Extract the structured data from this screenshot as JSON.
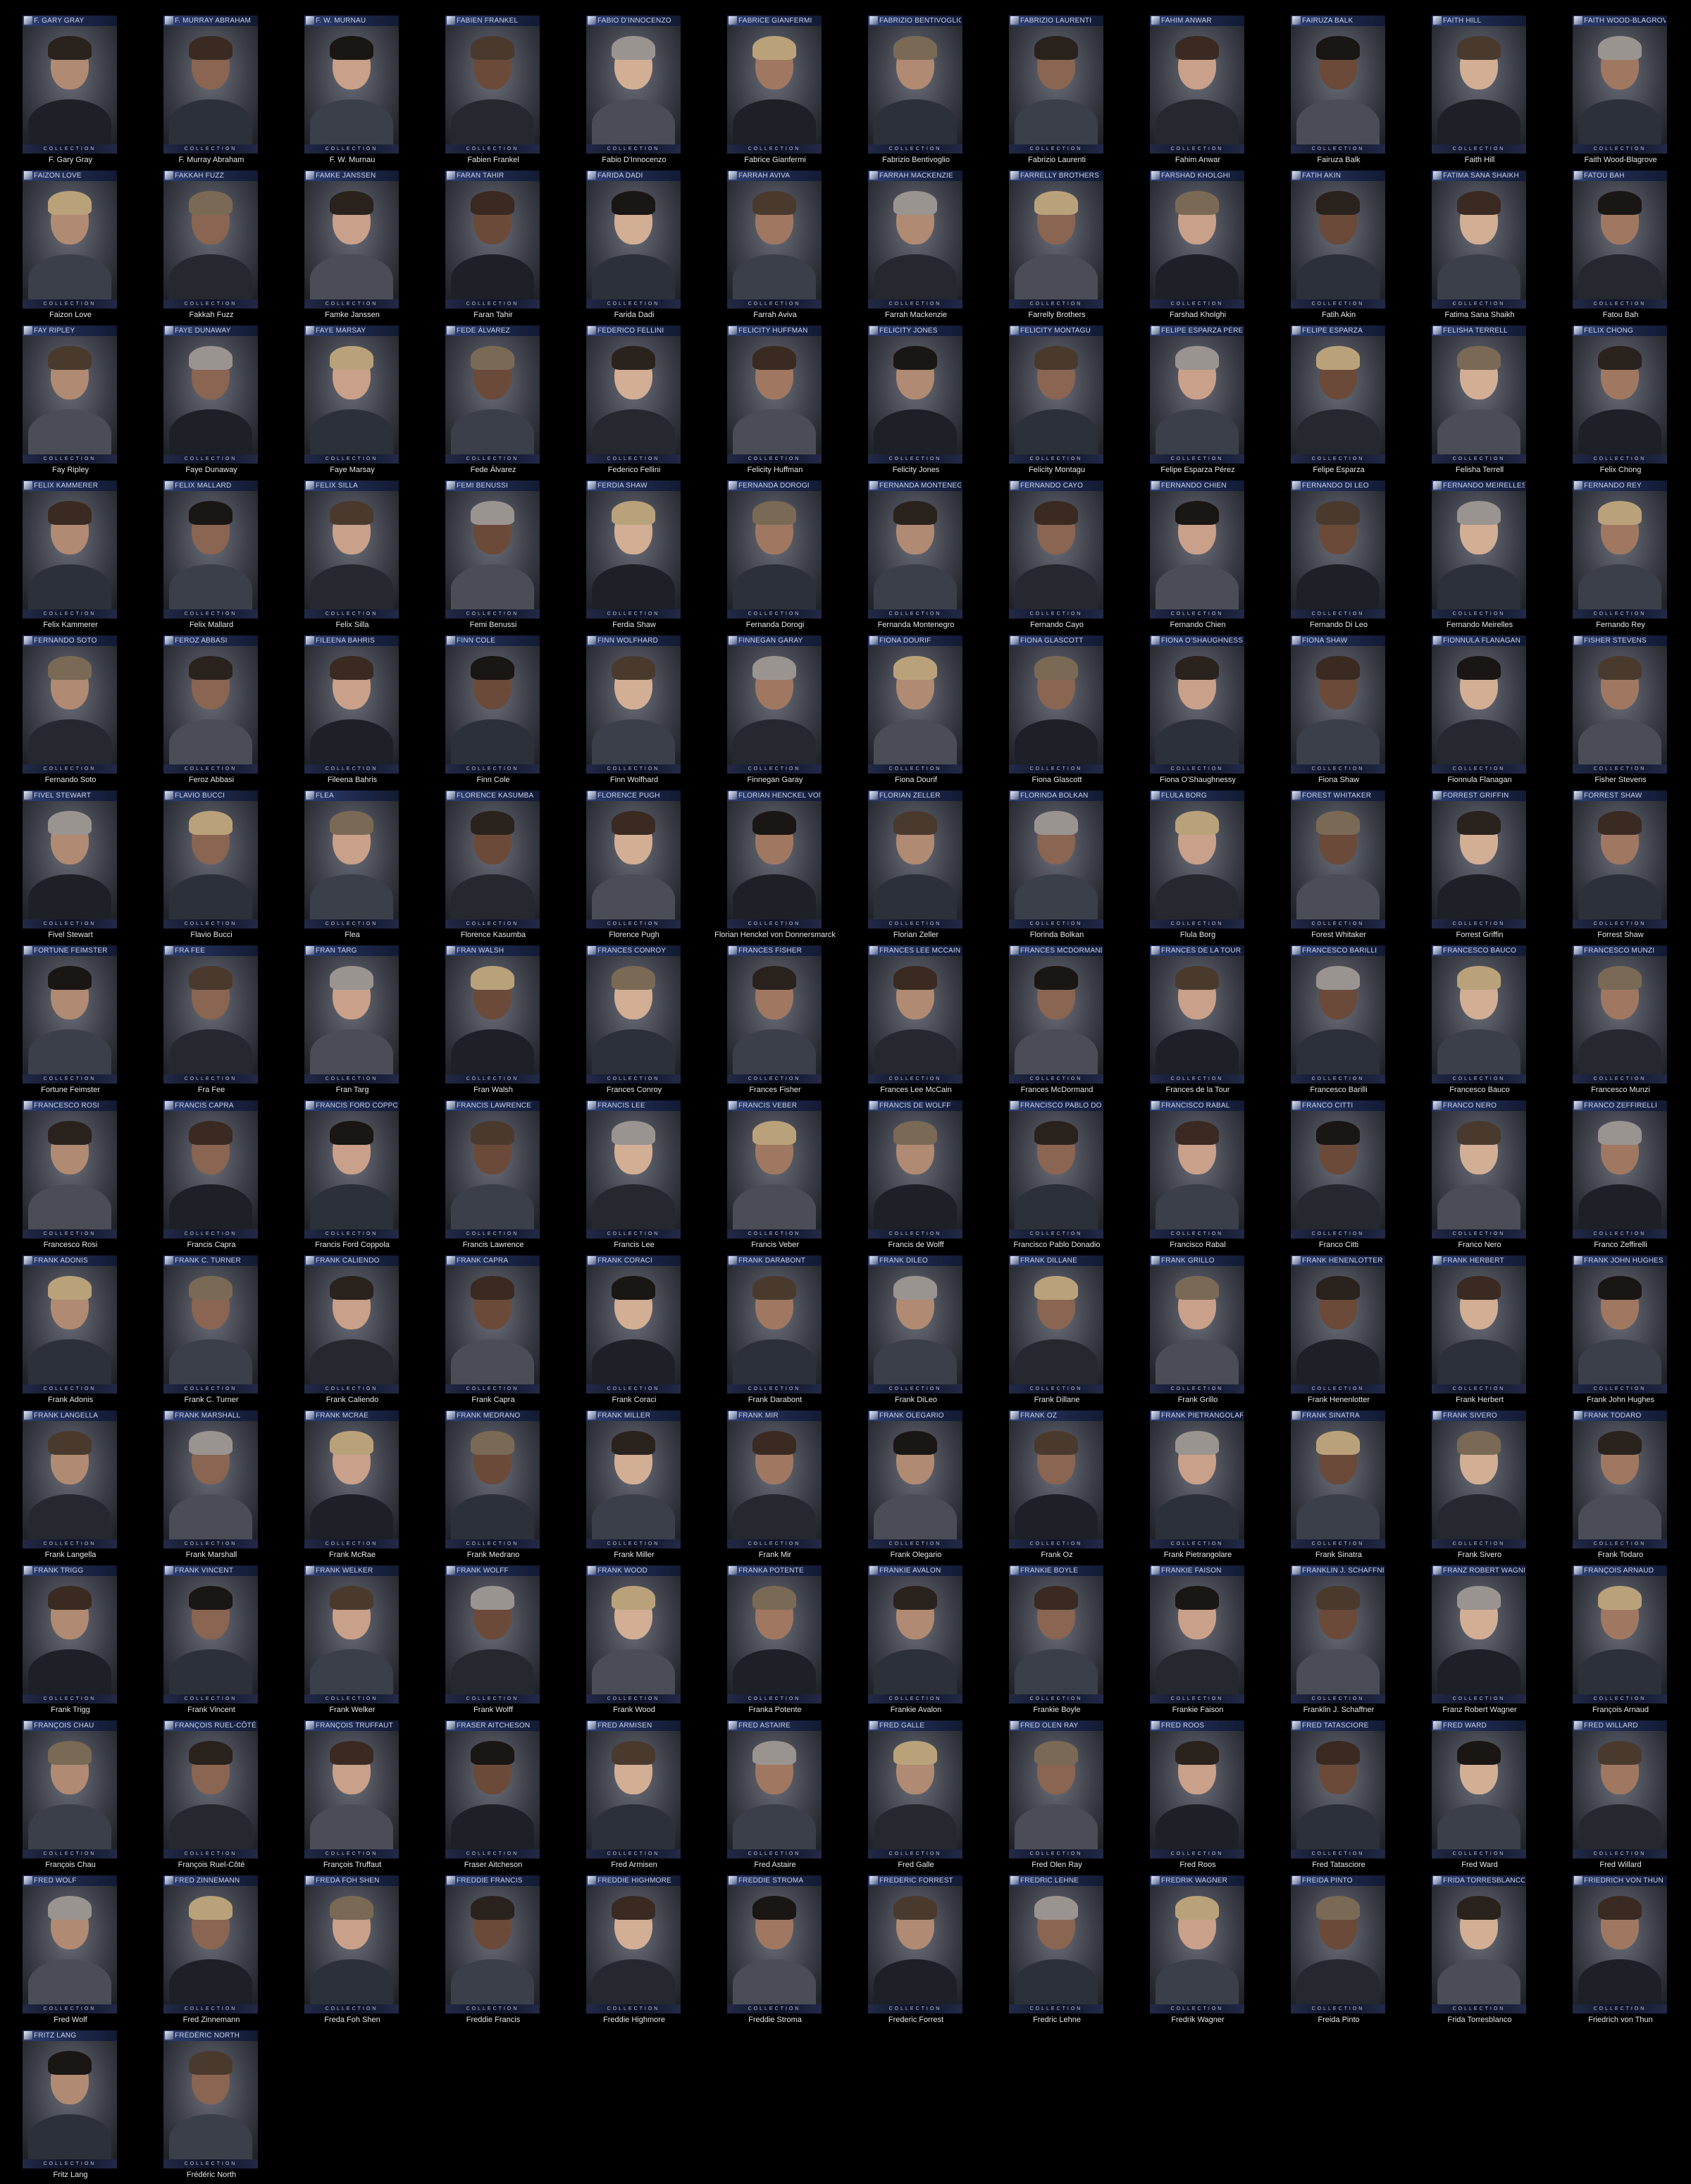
{
  "collection_label": "COLLECTION",
  "colors": {
    "background": "#000000",
    "banner": "#1c2749",
    "caption_text": "#e6e6e6"
  },
  "people": [
    {
      "banner": "F. GARY GRAY",
      "name": "F. Gary Gray"
    },
    {
      "banner": "F. MURRAY ABRAHAM",
      "name": "F. Murray Abraham"
    },
    {
      "banner": "F. W. MURNAU",
      "name": "F. W. Murnau"
    },
    {
      "banner": "FABIEN FRANKEL",
      "name": "Fabien Frankel"
    },
    {
      "banner": "FABIO D'INNOCENZO",
      "name": "Fabio D'Innocenzo"
    },
    {
      "banner": "FABRICE GIANFERMI",
      "name": "Fabrice Gianfermi"
    },
    {
      "banner": "FABRIZIO BENTIVOGLIO",
      "name": "Fabrizio Bentivoglio"
    },
    {
      "banner": "FABRIZIO LAURENTI",
      "name": "Fabrizio Laurenti"
    },
    {
      "banner": "FAHIM ANWAR",
      "name": "Fahim Anwar"
    },
    {
      "banner": "FAIRUZA BALK",
      "name": "Fairuza Balk"
    },
    {
      "banner": "FAITH HILL",
      "name": "Faith Hill"
    },
    {
      "banner": "FAITH WOOD-BLAGROVE",
      "name": "Faith Wood-Blagrove"
    },
    {
      "banner": "FAIZON LOVE",
      "name": "Faizon Love"
    },
    {
      "banner": "FAKKAH FUZZ",
      "name": "Fakkah Fuzz"
    },
    {
      "banner": "FAMKE JANSSEN",
      "name": "Famke Janssen"
    },
    {
      "banner": "FARAN TAHIR",
      "name": "Faran Tahir"
    },
    {
      "banner": "FARIDA DADI",
      "name": "Farida Dadi"
    },
    {
      "banner": "FARRAH AVIVA",
      "name": "Farrah Aviva"
    },
    {
      "banner": "FARRAH MACKENZIE",
      "name": "Farrah Mackenzie"
    },
    {
      "banner": "FARRELLY BROTHERS",
      "name": "Farrelly Brothers"
    },
    {
      "banner": "FARSHAD KHOLGHI",
      "name": "Farshad Kholghi"
    },
    {
      "banner": "FATIH AKIN",
      "name": "Fatih Akin"
    },
    {
      "banner": "FATIMA SANA SHAIKH",
      "name": "Fatima Sana Shaikh"
    },
    {
      "banner": "FATOU BAH",
      "name": "Fatou Bah"
    },
    {
      "banner": "FAY RIPLEY",
      "name": "Fay Ripley"
    },
    {
      "banner": "FAYE DUNAWAY",
      "name": "Faye Dunaway"
    },
    {
      "banner": "FAYE MARSAY",
      "name": "Faye Marsay"
    },
    {
      "banner": "FEDE ÁLVAREZ",
      "name": "Fede Álvarez"
    },
    {
      "banner": "FEDERICO FELLINI",
      "name": "Federico Fellini"
    },
    {
      "banner": "FELICITY HUFFMAN",
      "name": "Felicity Huffman"
    },
    {
      "banner": "FELICITY JONES",
      "name": "Felicity Jones"
    },
    {
      "banner": "FELICITY MONTAGU",
      "name": "Felicity Montagu"
    },
    {
      "banner": "FELIPE ESPARZA PÉREZ",
      "name": "Felipe Esparza Pérez"
    },
    {
      "banner": "FELIPE ESPARZA",
      "name": "Felipe Esparza"
    },
    {
      "banner": "FELISHA TERRELL",
      "name": "Felisha Terrell"
    },
    {
      "banner": "FELIX CHONG",
      "name": "Felix Chong"
    },
    {
      "banner": "FELIX KAMMERER",
      "name": "Felix Kammerer"
    },
    {
      "banner": "FELIX MALLARD",
      "name": "Felix Mallard"
    },
    {
      "banner": "FELIX SILLA",
      "name": "Felix Silla"
    },
    {
      "banner": "FEMI BENUSSI",
      "name": "Femi Benussi"
    },
    {
      "banner": "FERDIA SHAW",
      "name": "Ferdia Shaw"
    },
    {
      "banner": "FERNANDA DOROGI",
      "name": "Fernanda Dorogi"
    },
    {
      "banner": "FERNANDA MONTENEGRO",
      "name": "Fernanda Montenegro"
    },
    {
      "banner": "FERNANDO CAYO",
      "name": "Fernando Cayo"
    },
    {
      "banner": "FERNANDO CHIEN",
      "name": "Fernando Chien"
    },
    {
      "banner": "FERNANDO DI LEO",
      "name": "Fernando Di Leo"
    },
    {
      "banner": "FERNANDO MEIRELLES",
      "name": "Fernando Meirelles"
    },
    {
      "banner": "FERNANDO REY",
      "name": "Fernando Rey"
    },
    {
      "banner": "FERNANDO SOTO",
      "name": "Fernando Soto"
    },
    {
      "banner": "FEROZ ABBASI",
      "name": "Feroz Abbasi"
    },
    {
      "banner": "FILEENA BAHRIS",
      "name": "Fileena Bahris"
    },
    {
      "banner": "FINN COLE",
      "name": "Finn Cole"
    },
    {
      "banner": "FINN WOLFHARD",
      "name": "Finn Wolfhard"
    },
    {
      "banner": "FINNEGAN GARAY",
      "name": "Finnegan Garay"
    },
    {
      "banner": "FIONA DOURIF",
      "name": "Fiona Dourif"
    },
    {
      "banner": "FIONA GLASCOTT",
      "name": "Fiona Glascott"
    },
    {
      "banner": "FIONA O'SHAUGHNESSY",
      "name": "Fiona O'Shaughnessy"
    },
    {
      "banner": "FIONA SHAW",
      "name": "Fiona Shaw"
    },
    {
      "banner": "FIONNULA FLANAGAN",
      "name": "Fionnula Flanagan"
    },
    {
      "banner": "FISHER STEVENS",
      "name": "Fisher Stevens"
    },
    {
      "banner": "FIVEL STEWART",
      "name": "Fivel Stewart"
    },
    {
      "banner": "FLAVIO BUCCI",
      "name": "Flavio Bucci"
    },
    {
      "banner": "FLEA",
      "name": "Flea"
    },
    {
      "banner": "FLORENCE KASUMBA",
      "name": "Florence Kasumba"
    },
    {
      "banner": "FLORENCE PUGH",
      "name": "Florence Pugh"
    },
    {
      "banner": "FLORIAN HENCKEL VON DONNERSMARCK",
      "name": "Florian Henckel von Donnersmarck"
    },
    {
      "banner": "FLORIAN ZELLER",
      "name": "Florian Zeller"
    },
    {
      "banner": "FLORINDA BOLKAN",
      "name": "Florinda Bolkan"
    },
    {
      "banner": "FLULA BORG",
      "name": "Flula Borg"
    },
    {
      "banner": "FOREST WHITAKER",
      "name": "Forest Whitaker"
    },
    {
      "banner": "FORREST GRIFFIN",
      "name": "Forrest Griffin"
    },
    {
      "banner": "FORREST SHAW",
      "name": "Forrest Shaw"
    },
    {
      "banner": "FORTUNE FEIMSTER",
      "name": "Fortune Feimster"
    },
    {
      "banner": "FRA FEE",
      "name": "Fra Fee"
    },
    {
      "banner": "FRAN TARG",
      "name": "Fran Targ"
    },
    {
      "banner": "FRAN WALSH",
      "name": "Fran Walsh"
    },
    {
      "banner": "FRANCES CONROY",
      "name": "Frances Conroy"
    },
    {
      "banner": "FRANCES FISHER",
      "name": "Frances Fisher"
    },
    {
      "banner": "FRANCES LEE MCCAIN",
      "name": "Frances Lee McCain"
    },
    {
      "banner": "FRANCES MCDORMAND",
      "name": "Frances McDormand"
    },
    {
      "banner": "FRANCES DE LA TOUR",
      "name": "Frances de la Tour"
    },
    {
      "banner": "FRANCESCO BARILLI",
      "name": "Francesco Barilli"
    },
    {
      "banner": "FRANCESCO BAUCO",
      "name": "Francesco Bauco"
    },
    {
      "banner": "FRANCESCO MUNZI",
      "name": "Francesco Munzi"
    },
    {
      "banner": "FRANCESCO ROSI",
      "name": "Francesco Rosi"
    },
    {
      "banner": "FRANCIS CAPRA",
      "name": "Francis Capra"
    },
    {
      "banner": "FRANCIS FORD COPPOLA",
      "name": "Francis Ford Coppola"
    },
    {
      "banner": "FRANCIS LAWRENCE",
      "name": "Francis Lawrence"
    },
    {
      "banner": "FRANCIS LEE",
      "name": "Francis Lee"
    },
    {
      "banner": "FRANCIS VEBER",
      "name": "Francis Veber"
    },
    {
      "banner": "FRANCIS DE WOLFF",
      "name": "Francis de Wolff"
    },
    {
      "banner": "FRANCISCO PABLO DONADIO",
      "name": "Francisco Pablo Donadio"
    },
    {
      "banner": "FRANCISCO RABAL",
      "name": "Francisco Rabal"
    },
    {
      "banner": "FRANCO CITTI",
      "name": "Franco Citti"
    },
    {
      "banner": "FRANCO NERO",
      "name": "Franco Nero"
    },
    {
      "banner": "FRANCO ZEFFIRELLI",
      "name": "Franco Zeffirelli"
    },
    {
      "banner": "FRANK ADONIS",
      "name": "Frank Adonis"
    },
    {
      "banner": "FRANK C. TURNER",
      "name": "Frank C. Turner"
    },
    {
      "banner": "FRANK CALIENDO",
      "name": "Frank Caliendo"
    },
    {
      "banner": "FRANK CAPRA",
      "name": "Frank Capra"
    },
    {
      "banner": "FRANK CORACI",
      "name": "Frank Coraci"
    },
    {
      "banner": "FRANK DARABONT",
      "name": "Frank Darabont"
    },
    {
      "banner": "FRANK DILEO",
      "name": "Frank DiLeo"
    },
    {
      "banner": "FRANK DILLANE",
      "name": "Frank Dillane"
    },
    {
      "banner": "FRANK GRILLO",
      "name": "Frank Grillo"
    },
    {
      "banner": "FRANK HENENLOTTER",
      "name": "Frank Henenlotter"
    },
    {
      "banner": "FRANK HERBERT",
      "name": "Frank Herbert"
    },
    {
      "banner": "FRANK JOHN HUGHES",
      "name": "Frank John Hughes"
    },
    {
      "banner": "FRANK LANGELLA",
      "name": "Frank Langella"
    },
    {
      "banner": "FRANK MARSHALL",
      "name": "Frank Marshall"
    },
    {
      "banner": "FRANK MCRAE",
      "name": "Frank McRae"
    },
    {
      "banner": "FRANK MEDRANO",
      "name": "Frank Medrano"
    },
    {
      "banner": "FRANK MILLER",
      "name": "Frank Miller"
    },
    {
      "banner": "FRANK MIR",
      "name": "Frank Mir"
    },
    {
      "banner": "FRANK OLEGARIO",
      "name": "Frank Olegario"
    },
    {
      "banner": "FRANK OZ",
      "name": "Frank Oz"
    },
    {
      "banner": "FRANK PIETRANGOLARE",
      "name": "Frank Pietrangolare"
    },
    {
      "banner": "FRANK SINATRA",
      "name": "Frank Sinatra"
    },
    {
      "banner": "FRANK SIVERO",
      "name": "Frank Sivero"
    },
    {
      "banner": "FRANK TODARO",
      "name": "Frank Todaro"
    },
    {
      "banner": "FRANK TRIGG",
      "name": "Frank Trigg"
    },
    {
      "banner": "FRANK VINCENT",
      "name": "Frank Vincent"
    },
    {
      "banner": "FRANK WELKER",
      "name": "Frank Welker"
    },
    {
      "banner": "FRANK WOLFF",
      "name": "Frank Wolff"
    },
    {
      "banner": "FRANK WOOD",
      "name": "Frank Wood"
    },
    {
      "banner": "FRANKA POTENTE",
      "name": "Franka Potente"
    },
    {
      "banner": "FRANKIE AVALON",
      "name": "Frankie Avalon"
    },
    {
      "banner": "FRANKIE BOYLE",
      "name": "Frankie Boyle"
    },
    {
      "banner": "FRANKIE FAISON",
      "name": "Frankie Faison"
    },
    {
      "banner": "FRANKLIN J. SCHAFFNER",
      "name": "Franklin J. Schaffner"
    },
    {
      "banner": "FRANZ ROBERT WAGNER",
      "name": "Franz Robert Wagner"
    },
    {
      "banner": "FRANÇOIS ARNAUD",
      "name": "François Arnaud"
    },
    {
      "banner": "FRANÇOIS CHAU",
      "name": "François Chau"
    },
    {
      "banner": "FRANÇOIS RUEL-CÔTÉ",
      "name": "François Ruel-Côté"
    },
    {
      "banner": "FRANÇOIS TRUFFAUT",
      "name": "François Truffaut"
    },
    {
      "banner": "FRASER AITCHESON",
      "name": "Fraser Aitcheson"
    },
    {
      "banner": "FRED ARMISEN",
      "name": "Fred Armisen"
    },
    {
      "banner": "FRED ASTAIRE",
      "name": "Fred Astaire"
    },
    {
      "banner": "FRED GALLE",
      "name": "Fred Galle"
    },
    {
      "banner": "FRED OLEN RAY",
      "name": "Fred Olen Ray"
    },
    {
      "banner": "FRED ROOS",
      "name": "Fred Roos"
    },
    {
      "banner": "FRED TATASCIORE",
      "name": "Fred Tatasciore"
    },
    {
      "banner": "FRED WARD",
      "name": "Fred Ward"
    },
    {
      "banner": "FRED WILLARD",
      "name": "Fred Willard"
    },
    {
      "banner": "FRED WOLF",
      "name": "Fred Wolf"
    },
    {
      "banner": "FRED ZINNEMANN",
      "name": "Fred Zinnemann"
    },
    {
      "banner": "FREDA FOH SHEN",
      "name": "Freda Foh Shen"
    },
    {
      "banner": "FREDDIE FRANCIS",
      "name": "Freddie Francis"
    },
    {
      "banner": "FREDDIE HIGHMORE",
      "name": "Freddie Highmore"
    },
    {
      "banner": "FREDDIE STROMA",
      "name": "Freddie Stroma"
    },
    {
      "banner": "FREDERIC FORREST",
      "name": "Frederic Forrest"
    },
    {
      "banner": "FREDRIC LEHNE",
      "name": "Fredric Lehne"
    },
    {
      "banner": "FREDRIK WAGNER",
      "name": "Fredrik Wagner"
    },
    {
      "banner": "FREIDA PINTO",
      "name": "Freida Pinto"
    },
    {
      "banner": "FRIDA TORRESBLANCO",
      "name": "Frida Torresblanco"
    },
    {
      "banner": "FRIEDRICH VON THUN",
      "name": "Friedrich von Thun"
    },
    {
      "banner": "FRITZ LANG",
      "name": "Fritz Lang"
    },
    {
      "banner": "FRÉDÉRIC NORTH",
      "name": "Frédéric North"
    }
  ]
}
